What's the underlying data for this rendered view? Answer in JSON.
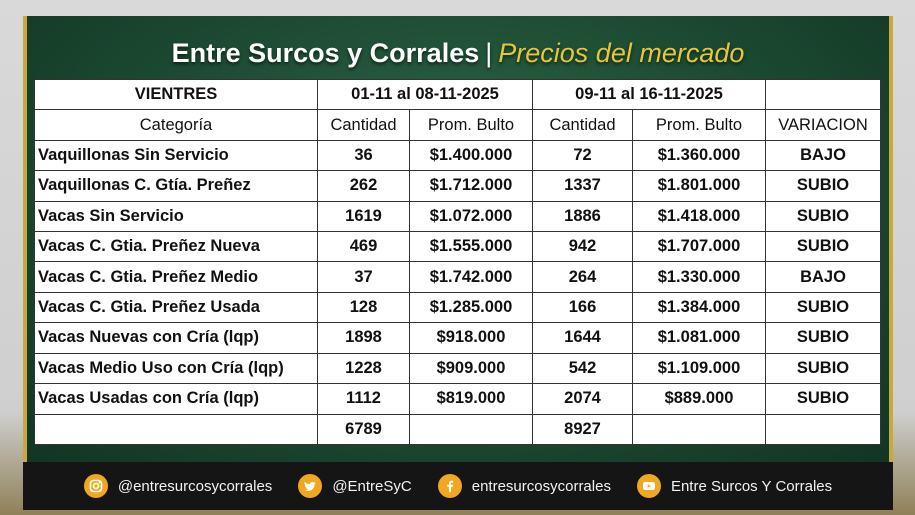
{
  "header": {
    "title": "Entre Surcos y Corrales",
    "separator": "|",
    "subtitle": "Precios del mercado"
  },
  "table": {
    "section_label": "VIENTRES",
    "period1": "01-11 al 08-11-2025",
    "period2": "09-11 al 16-11-2025",
    "columns": [
      "Categoría",
      "Cantidad",
      "Prom. Bulto",
      "Cantidad",
      "Prom. Bulto",
      "VARIACION"
    ],
    "rows": [
      {
        "categoria": "Vaquillonas Sin Servicio",
        "cant1": "36",
        "prom1": "$1.400.000",
        "cant2": "72",
        "prom2": "$1.360.000",
        "variacion": "BAJO"
      },
      {
        "categoria": "Vaquillonas C. Gtía. Preñez",
        "cant1": "262",
        "prom1": "$1.712.000",
        "cant2": "1337",
        "prom2": "$1.801.000",
        "variacion": "SUBIO"
      },
      {
        "categoria": "Vacas Sin Servicio",
        "cant1": "1619",
        "prom1": "$1.072.000",
        "cant2": "1886",
        "prom2": "$1.418.000",
        "variacion": "SUBIO"
      },
      {
        "categoria": "Vacas C. Gtia. Preñez Nueva",
        "cant1": "469",
        "prom1": "$1.555.000",
        "cant2": "942",
        "prom2": "$1.707.000",
        "variacion": "SUBIO"
      },
      {
        "categoria": "Vacas C. Gtia. Preñez Medio",
        "cant1": "37",
        "prom1": "$1.742.000",
        "cant2": "264",
        "prom2": "$1.330.000",
        "variacion": "BAJO"
      },
      {
        "categoria": "Vacas C. Gtia. Preñez Usada",
        "cant1": "128",
        "prom1": "$1.285.000",
        "cant2": "166",
        "prom2": "$1.384.000",
        "variacion": "SUBIO"
      },
      {
        "categoria": "Vacas Nuevas con Cría (lqp)",
        "cant1": "1898",
        "prom1": "$918.000",
        "cant2": "1644",
        "prom2": "$1.081.000",
        "variacion": "SUBIO"
      },
      {
        "categoria": "Vacas Medio Uso con Cría (lqp)",
        "cant1": "1228",
        "prom1": "$909.000",
        "cant2": "542",
        "prom2": "$1.109.000",
        "variacion": "SUBIO"
      },
      {
        "categoria": "Vacas Usadas con Cría (lqp)",
        "cant1": "1112",
        "prom1": "$819.000",
        "cant2": "2074",
        "prom2": "$889.000",
        "variacion": "SUBIO"
      }
    ],
    "total1": "6789",
    "total2": "8927"
  },
  "footer": {
    "instagram": "@entresurcosycorrales",
    "twitter": "@EntreSyC",
    "facebook": "entresurcosycorrales",
    "youtube": "Entre Surcos Y Corrales"
  },
  "colors": {
    "bajo": "#d8191c",
    "subio": "#1a8a2c",
    "accent": "#e6c63c",
    "icon": "#f0a820"
  },
  "icons": [
    "instagram-icon",
    "twitter-icon",
    "facebook-icon",
    "youtube-icon"
  ]
}
